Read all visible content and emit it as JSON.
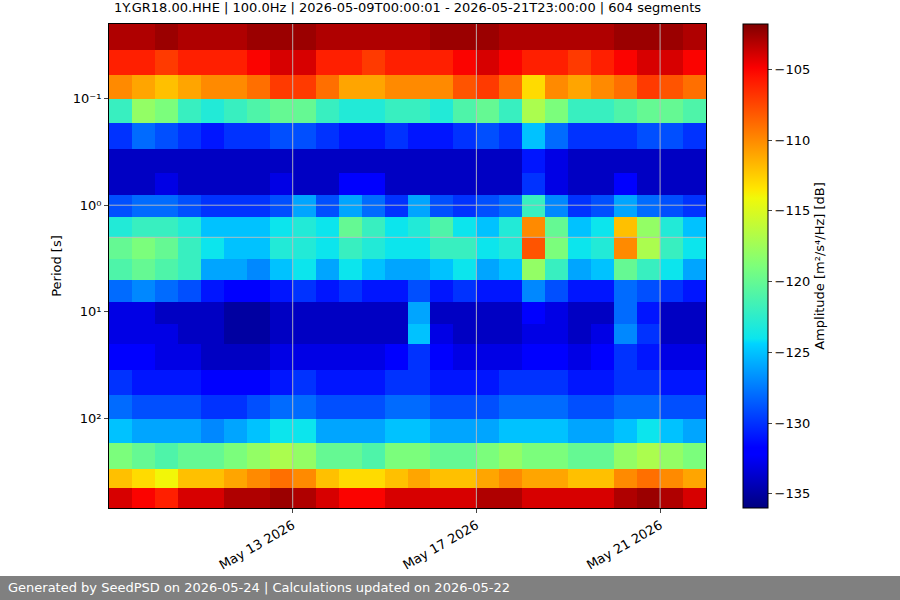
{
  "chart_data": {
    "type": "heatmap",
    "title": "1Y.GR18.00.HHE | 100.0Hz | 2026-05-09T00:00:01 - 2026-05-21T23:00:00 | 604 segments",
    "y_label": "Period [s]",
    "colorbar_label": "Amplitude [m²/s⁴/Hz] [dB]",
    "footer": "Generated by SeedPSD on 2026-05-24 | Calculations updated on 2026-05-22",
    "log": "y",
    "grid": true,
    "xlim": [
      "2026-05-09 00:00",
      "2026-05-22 00:00"
    ],
    "xticks": [
      {
        "value": "2026-05-13",
        "label": "May 13 2026"
      },
      {
        "value": "2026-05-17",
        "label": "May 17 2026"
      },
      {
        "value": "2026-05-21",
        "label": "May 21 2026"
      }
    ],
    "ylim": [
      0.02,
      690
    ],
    "yticks": [
      {
        "value": 0.1,
        "label": "10⁻¹"
      },
      {
        "value": 1,
        "label": "10⁰"
      },
      {
        "value": 10,
        "label": "10¹"
      },
      {
        "value": 100,
        "label": "10²"
      }
    ],
    "zlim": [
      -136,
      -101.8
    ],
    "zticks": [
      -105,
      -110,
      -115,
      -120,
      -125,
      -130,
      -135
    ],
    "time_edges": [
      "2026-05-09 00:00",
      "2026-05-09 12:00",
      "2026-05-10 00:00",
      "2026-05-10 12:00",
      "2026-05-11 00:00",
      "2026-05-11 12:00",
      "2026-05-12 00:00",
      "2026-05-12 12:00",
      "2026-05-13 00:00",
      "2026-05-13 12:00",
      "2026-05-14 00:00",
      "2026-05-14 12:00",
      "2026-05-15 00:00",
      "2026-05-15 12:00",
      "2026-05-16 00:00",
      "2026-05-16 12:00",
      "2026-05-17 00:00",
      "2026-05-17 12:00",
      "2026-05-18 00:00",
      "2026-05-18 12:00",
      "2026-05-19 00:00",
      "2026-05-19 12:00",
      "2026-05-20 00:00",
      "2026-05-20 12:00",
      "2026-05-21 00:00",
      "2026-05-21 12:00",
      "2026-05-22 00:00"
    ],
    "period_edges": [
      0.02,
      0.035,
      0.06,
      0.1,
      0.17,
      0.3,
      0.5,
      0.8,
      1.3,
      2,
      3.2,
      5,
      8,
      13,
      20,
      35,
      60,
      100,
      170,
      300,
      450,
      690
    ],
    "cells": [
      [
        -103,
        -103,
        -102.5,
        -103,
        -103,
        -103,
        -102.5,
        -102.5,
        -102.5,
        -103,
        -103,
        -103,
        -103,
        -103,
        -102.5,
        -102.5,
        -102.5,
        -103,
        -103,
        -103,
        -103,
        -103,
        -102.5,
        -102.5,
        -102.5,
        -103
      ],
      [
        -106,
        -106,
        -107,
        -106,
        -106,
        -106,
        -105,
        -104,
        -104,
        -106,
        -106,
        -107,
        -106,
        -106,
        -106,
        -105,
        -104,
        -105,
        -106,
        -106,
        -107,
        -106,
        -105,
        -104,
        -104,
        -105
      ],
      [
        -110,
        -111,
        -112,
        -111,
        -110,
        -110,
        -109,
        -107,
        -107,
        -109,
        -111,
        -111,
        -110,
        -110,
        -110,
        -108,
        -107,
        -109,
        -113,
        -110,
        -111,
        -110,
        -109,
        -107,
        -108,
        -109
      ],
      [
        -122,
        -118,
        -119,
        -122,
        -123,
        -122,
        -121,
        -120,
        -120,
        -122,
        -123,
        -123,
        -122,
        -122,
        -123,
        -121,
        -120,
        -122,
        -117,
        -119,
        -122,
        -122,
        -121,
        -120,
        -120,
        -121
      ],
      [
        -130,
        -128,
        -129,
        -130,
        -131,
        -130,
        -130,
        -129,
        -129,
        -130,
        -131,
        -131,
        -130,
        -131,
        -131,
        -130,
        -129,
        -130,
        -125,
        -128,
        -130,
        -130,
        -130,
        -129,
        -129,
        -130
      ],
      [
        -134,
        -134,
        -134,
        -134,
        -134,
        -134,
        -134,
        -134,
        -134,
        -134,
        -134,
        -134,
        -134,
        -134,
        -134,
        -134,
        -134,
        -134,
        -131,
        -133,
        -134,
        -134,
        -134,
        -134,
        -134,
        -134
      ],
      [
        -134,
        -134,
        -133,
        -134,
        -134,
        -134,
        -134,
        -133,
        -134,
        -134,
        -132,
        -132,
        -134,
        -134,
        -134,
        -134,
        -134,
        -134,
        -130,
        -133,
        -134,
        -134,
        -132,
        -134,
        -134,
        -134
      ],
      [
        -129,
        -128,
        -128,
        -129,
        -130,
        -130,
        -130,
        -129,
        -126,
        -129,
        -126,
        -128,
        -130,
        -126,
        -129,
        -130,
        -129,
        -128,
        -122,
        -127,
        -130,
        -129,
        -126,
        -128,
        -129,
        -130
      ],
      [
        -123,
        -122,
        -122,
        -123,
        -125,
        -125,
        -125,
        -124,
        -123,
        -124,
        -120,
        -122,
        -124,
        -123,
        -121,
        -124,
        -125,
        -123,
        -110,
        -120,
        -125,
        -124,
        -112,
        -118,
        -123,
        -125
      ],
      [
        -120,
        -119,
        -120,
        -122,
        -124,
        -125,
        -125,
        -123,
        -123,
        -124,
        -122,
        -123,
        -124,
        -124,
        -122,
        -122,
        -124,
        -123,
        -108,
        -119,
        -124,
        -123,
        -110,
        -117,
        -122,
        -124
      ],
      [
        -121,
        -120,
        -121,
        -122,
        -126,
        -126,
        -127,
        -125,
        -124,
        -126,
        -124,
        -125,
        -126,
        -126,
        -125,
        -124,
        -126,
        -125,
        -118,
        -122,
        -126,
        -125,
        -120,
        -122,
        -124,
        -126
      ],
      [
        -128,
        -127,
        -128,
        -129,
        -131,
        -132,
        -132,
        -131,
        -130,
        -131,
        -130,
        -131,
        -131,
        -129,
        -131,
        -130,
        -131,
        -131,
        -127,
        -129,
        -131,
        -131,
        -128,
        -129,
        -130,
        -131
      ],
      [
        -133,
        -133,
        -134,
        -134,
        -134,
        -135,
        -135,
        -134,
        -134,
        -134,
        -134,
        -134,
        -134,
        -126,
        -134,
        -134,
        -134,
        -134,
        -132,
        -133,
        -134,
        -134,
        -128,
        -131,
        -134,
        -134
      ],
      [
        -133,
        -133,
        -133,
        -134,
        -134,
        -135,
        -135,
        -134,
        -134,
        -134,
        -134,
        -134,
        -134,
        -125,
        -133,
        -134,
        -134,
        -134,
        -133,
        -133,
        -134,
        -133,
        -127,
        -130,
        -134,
        -134
      ],
      [
        -132,
        -132,
        -133,
        -133,
        -134,
        -134,
        -134,
        -133,
        -133,
        -133,
        -133,
        -133,
        -132,
        -130,
        -132,
        -133,
        -133,
        -133,
        -132,
        -132,
        -133,
        -132,
        -130,
        -131,
        -133,
        -133
      ],
      [
        -130,
        -131,
        -131,
        -131,
        -132,
        -132,
        -132,
        -131,
        -130,
        -131,
        -131,
        -131,
        -130,
        -130,
        -131,
        -131,
        -131,
        -130,
        -130,
        -130,
        -131,
        -131,
        -130,
        -130,
        -131,
        -131
      ],
      [
        -128,
        -129,
        -129,
        -129,
        -130,
        -130,
        -129,
        -128,
        -128,
        -129,
        -129,
        -129,
        -128,
        -128,
        -129,
        -129,
        -129,
        -128,
        -128,
        -128,
        -129,
        -129,
        -128,
        -128,
        -129,
        -129
      ],
      [
        -125,
        -126,
        -126,
        -126,
        -127,
        -126,
        -125,
        -124,
        -124,
        -126,
        -126,
        -126,
        -125,
        -125,
        -126,
        -126,
        -126,
        -125,
        -125,
        -125,
        -126,
        -126,
        -125,
        -124,
        -125,
        -126
      ],
      [
        -119,
        -120,
        -121,
        -120,
        -120,
        -119,
        -118,
        -117,
        -118,
        -120,
        -120,
        -121,
        -119,
        -119,
        -120,
        -120,
        -119,
        -118,
        -119,
        -119,
        -120,
        -120,
        -118,
        -117,
        -118,
        -119
      ],
      [
        -112,
        -113,
        -114,
        -112,
        -112,
        -111,
        -110,
        -109,
        -110,
        -112,
        -113,
        -113,
        -112,
        -111,
        -112,
        -112,
        -111,
        -110,
        -111,
        -111,
        -112,
        -112,
        -110,
        -109,
        -110,
        -111
      ],
      [
        -104,
        -105,
        -106,
        -104,
        -104,
        -103,
        -103,
        -102.5,
        -103,
        -104,
        -105,
        -105,
        -104,
        -104,
        -104,
        -104,
        -103,
        -103,
        -104,
        -104,
        -104,
        -104,
        -103,
        -102.5,
        -103,
        -104
      ]
    ]
  }
}
